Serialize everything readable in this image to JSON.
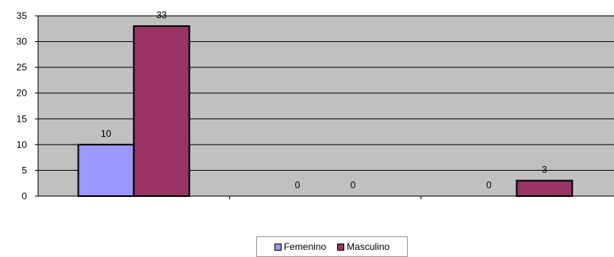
{
  "chart_data": {
    "type": "bar",
    "categories": [
      "",
      "",
      ""
    ],
    "series": [
      {
        "name": "Femenino",
        "values": [
          10,
          0,
          0
        ],
        "color": "#9999ff"
      },
      {
        "name": "Masculino",
        "values": [
          33,
          0,
          3
        ],
        "color": "#993366"
      }
    ],
    "ylim": [
      0,
      35
    ],
    "yticks": [
      0,
      5,
      10,
      15,
      20,
      25,
      30,
      35
    ],
    "grid": true,
    "plot_background": "#c0c0c0",
    "legend_position": "bottom"
  }
}
